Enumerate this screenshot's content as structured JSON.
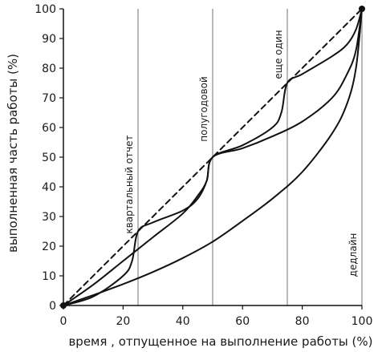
{
  "chart_data": {
    "type": "line",
    "xlabel": "время , отпущенное  на  выполнение  работы (%)",
    "ylabel": "выполненная  часть  работы (%)",
    "xlim": [
      0,
      100
    ],
    "ylim": [
      0,
      100
    ],
    "xticks": [
      "0",
      "20",
      "40",
      "60",
      "80",
      "100"
    ],
    "yticks": [
      "0",
      "10",
      "20",
      "30",
      "40",
      "50",
      "60",
      "70",
      "80",
      "90",
      "100"
    ],
    "grid": false,
    "legend": "none",
    "colors": {
      "curves": "#111111",
      "markers": "#111111",
      "milestone_lines": "#888888"
    },
    "milestones": [
      {
        "x": 25,
        "label": "квартальный  отчет"
      },
      {
        "x": 50,
        "label": "полугодовой"
      },
      {
        "x": 75,
        "label": "еще  один"
      },
      {
        "x": 100,
        "label": "дедлайн"
      }
    ],
    "series": [
      {
        "style": "dashed",
        "x": [
          0,
          100
        ],
        "y": [
          0,
          100
        ]
      },
      {
        "style": "solid",
        "x": [
          0,
          10,
          20,
          30,
          40,
          50,
          60,
          70,
          80,
          90,
          95,
          98,
          100
        ],
        "y": [
          0,
          3.5,
          7.2,
          11.3,
          16,
          21.5,
          28.5,
          36,
          45,
          58,
          68,
          80,
          100
        ]
      },
      {
        "style": "solid",
        "x": [
          0,
          10,
          20,
          30,
          40,
          45,
          48,
          50,
          60,
          70,
          80,
          90,
          95,
          98,
          100
        ],
        "y": [
          0,
          7,
          15,
          23,
          31,
          37,
          42,
          50,
          53,
          57,
          62,
          70,
          78,
          86,
          100
        ]
      },
      {
        "style": "solid",
        "x": [
          0,
          10,
          20,
          23,
          25,
          30,
          40,
          45,
          48,
          50,
          60,
          70,
          73,
          75,
          80,
          90,
          95,
          98,
          100
        ],
        "y": [
          0,
          3,
          10,
          15,
          25,
          28,
          32,
          36,
          42,
          50,
          54,
          60,
          65,
          75,
          78,
          84,
          88,
          93,
          100
        ]
      }
    ]
  }
}
